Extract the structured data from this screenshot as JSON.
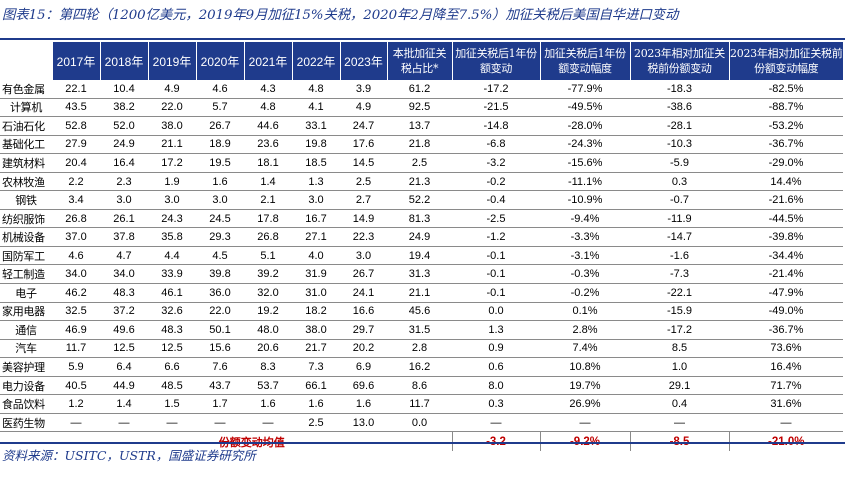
{
  "title": "图表15：第四轮（1200亿美元，2019年9月加征15%关税，2020年2月降至7.5%）加征关税后美国自华进口变动",
  "headers": [
    "2017年",
    "2018年",
    "2019年",
    "2020年",
    "2021年",
    "2022年",
    "2023年",
    "本批加征关税占比*",
    "加征关税后1年份额变动",
    "加征关税后1年份额变动幅度",
    "2023年相对加征关税前份额变动",
    "2023年相对加征关税前份额变动幅度"
  ],
  "rows": [
    {
      "name": "有色金属",
      "v": [
        "22.1",
        "10.4",
        "4.9",
        "4.6",
        "4.3",
        "4.8",
        "3.9",
        "61.2",
        "-17.2",
        "-77.9%",
        "-18.3",
        "-82.5%"
      ]
    },
    {
      "name": "计算机",
      "v": [
        "43.5",
        "38.2",
        "22.0",
        "5.7",
        "4.8",
        "4.1",
        "4.9",
        "92.5",
        "-21.5",
        "-49.5%",
        "-38.6",
        "-88.7%"
      ]
    },
    {
      "name": "石油石化",
      "v": [
        "52.8",
        "52.0",
        "38.0",
        "26.7",
        "44.6",
        "33.1",
        "24.7",
        "13.7",
        "-14.8",
        "-28.0%",
        "-28.1",
        "-53.2%"
      ]
    },
    {
      "name": "基础化工",
      "v": [
        "27.9",
        "24.9",
        "21.1",
        "18.9",
        "23.6",
        "19.8",
        "17.6",
        "21.8",
        "-6.8",
        "-24.3%",
        "-10.3",
        "-36.7%"
      ]
    },
    {
      "name": "建筑材料",
      "v": [
        "20.4",
        "16.4",
        "17.2",
        "19.5",
        "18.1",
        "18.5",
        "14.5",
        "2.5",
        "-3.2",
        "-15.6%",
        "-5.9",
        "-29.0%"
      ]
    },
    {
      "name": "农林牧渔",
      "v": [
        "2.2",
        "2.3",
        "1.9",
        "1.6",
        "1.4",
        "1.3",
        "2.5",
        "21.3",
        "-0.2",
        "-11.1%",
        "0.3",
        "14.4%"
      ]
    },
    {
      "name": "钢铁",
      "v": [
        "3.4",
        "3.0",
        "3.0",
        "3.0",
        "2.1",
        "3.0",
        "2.7",
        "52.2",
        "-0.4",
        "-10.9%",
        "-0.7",
        "-21.6%"
      ]
    },
    {
      "name": "纺织服饰",
      "v": [
        "26.8",
        "26.1",
        "24.3",
        "24.5",
        "17.8",
        "16.7",
        "14.9",
        "81.3",
        "-2.5",
        "-9.4%",
        "-11.9",
        "-44.5%"
      ]
    },
    {
      "name": "机械设备",
      "v": [
        "37.0",
        "37.8",
        "35.8",
        "29.3",
        "26.8",
        "27.1",
        "22.3",
        "24.9",
        "-1.2",
        "-3.3%",
        "-14.7",
        "-39.8%"
      ]
    },
    {
      "name": "国防军工",
      "v": [
        "4.6",
        "4.7",
        "4.4",
        "4.5",
        "5.1",
        "4.0",
        "3.0",
        "19.4",
        "-0.1",
        "-3.1%",
        "-1.6",
        "-34.4%"
      ]
    },
    {
      "name": "轻工制造",
      "v": [
        "34.0",
        "34.0",
        "33.9",
        "39.8",
        "39.2",
        "31.9",
        "26.7",
        "31.3",
        "-0.1",
        "-0.3%",
        "-7.3",
        "-21.4%"
      ]
    },
    {
      "name": "电子",
      "v": [
        "46.2",
        "48.3",
        "46.1",
        "36.0",
        "32.0",
        "31.0",
        "24.1",
        "21.1",
        "-0.1",
        "-0.2%",
        "-22.1",
        "-47.9%"
      ]
    },
    {
      "name": "家用电器",
      "v": [
        "32.5",
        "37.2",
        "32.6",
        "22.0",
        "19.2",
        "18.2",
        "16.6",
        "45.6",
        "0.0",
        "0.1%",
        "-15.9",
        "-49.0%"
      ]
    },
    {
      "name": "通信",
      "v": [
        "46.9",
        "49.6",
        "48.3",
        "50.1",
        "48.0",
        "38.0",
        "29.7",
        "31.5",
        "1.3",
        "2.8%",
        "-17.2",
        "-36.7%"
      ]
    },
    {
      "name": "汽车",
      "v": [
        "11.7",
        "12.5",
        "12.5",
        "15.6",
        "20.6",
        "21.7",
        "20.2",
        "2.8",
        "0.9",
        "7.4%",
        "8.5",
        "73.6%"
      ]
    },
    {
      "name": "美容护理",
      "v": [
        "5.9",
        "6.4",
        "6.6",
        "7.6",
        "8.3",
        "7.3",
        "6.9",
        "16.2",
        "0.6",
        "10.8%",
        "1.0",
        "16.4%"
      ]
    },
    {
      "name": "电力设备",
      "v": [
        "40.5",
        "44.9",
        "48.5",
        "43.7",
        "53.7",
        "66.1",
        "69.6",
        "8.6",
        "8.0",
        "19.7%",
        "29.1",
        "71.7%"
      ]
    },
    {
      "name": "食品饮料",
      "v": [
        "1.2",
        "1.4",
        "1.5",
        "1.7",
        "1.6",
        "1.6",
        "1.6",
        "11.7",
        "0.3",
        "26.9%",
        "0.4",
        "31.6%"
      ]
    },
    {
      "name": "医药生物",
      "v": [
        "—",
        "—",
        "—",
        "—",
        "—",
        "2.5",
        "13.0",
        "0.0",
        "—",
        "—",
        "—",
        "—"
      ]
    }
  ],
  "average": {
    "label": "份额变动均值",
    "v": [
      "-3.2",
      "-9.2%",
      "-8.5",
      "-21.0%"
    ]
  },
  "source": "资料来源：USITC，USTR，国盛证券研究所"
}
